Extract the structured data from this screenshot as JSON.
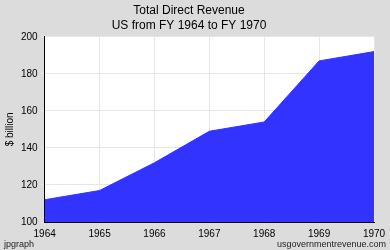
{
  "chart_data": {
    "type": "area",
    "title": "Total Direct Revenue",
    "subtitle": "US from FY 1964 to FY 1970",
    "y_label": "$ billion",
    "categories": [
      "1964",
      "1965",
      "1966",
      "1967",
      "1968",
      "1969",
      "1970"
    ],
    "values": [
      112,
      117,
      132,
      149,
      154,
      187,
      192
    ],
    "color": "#3333ff",
    "ylim": [
      100,
      200
    ],
    "yticks": [
      100,
      120,
      140,
      160,
      180,
      200
    ],
    "grid": true,
    "annotations": [
      "jpgraph",
      "usgovernmentrevenue.com"
    ]
  }
}
